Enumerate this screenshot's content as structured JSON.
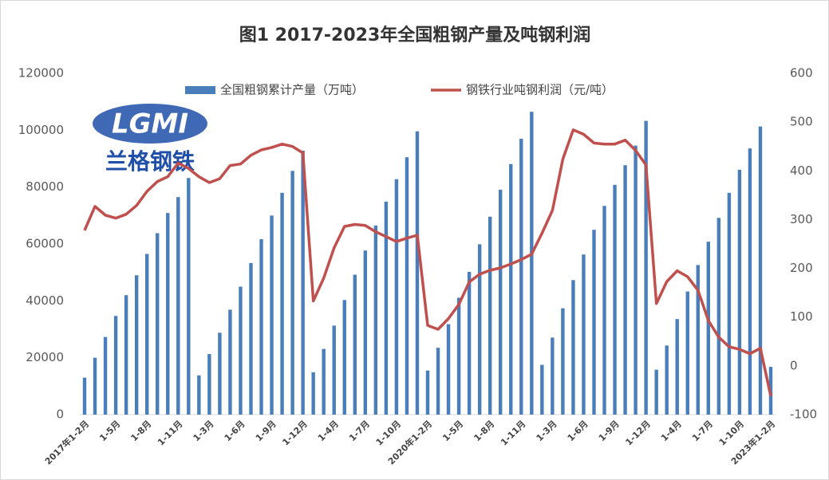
{
  "chart_data": {
    "type": "bar-line",
    "title": "图1 2017-2023年全国粗钢产量及吨钢利润",
    "annotations": [
      "LGMI",
      "兰格钢铁"
    ],
    "categories": [
      "2017年1-2月",
      null,
      null,
      "1-5月",
      null,
      null,
      "1-8月",
      null,
      null,
      "1-11月",
      null,
      null,
      "1-3月",
      null,
      null,
      "1-6月",
      null,
      null,
      "1-9月",
      null,
      null,
      "1-12月",
      null,
      null,
      "1-4月",
      null,
      null,
      "1-7月",
      null,
      null,
      "1-10月",
      null,
      null,
      "2020年1-2月",
      null,
      null,
      "1-5月",
      null,
      null,
      "1-8月",
      null,
      null,
      "1-11月",
      null,
      null,
      "1-3月",
      null,
      null,
      "1-6月",
      null,
      null,
      "1-9月",
      null,
      null,
      "1-12月",
      null,
      null,
      "1-4月",
      null,
      null,
      "1-7月",
      null,
      null,
      "1-10月",
      null,
      null,
      "2023年1-2月"
    ],
    "series": [
      {
        "name": "全国粗钢累计产量（万吨）",
        "color": "#4a7ebb",
        "kind": "bar",
        "axis": "y",
        "values": [
          13000,
          20000,
          27300,
          34700,
          42000,
          49000,
          56500,
          63800,
          70900,
          76500,
          83200,
          13800,
          21300,
          28800,
          36900,
          45000,
          53300,
          61700,
          70000,
          78000,
          85700,
          92800,
          14900,
          23100,
          31300,
          40300,
          49200,
          57700,
          66500,
          74900,
          82800,
          90500,
          99600,
          15500,
          23500,
          31800,
          41100,
          50200,
          59900,
          69600,
          79100,
          88100,
          97000,
          106500,
          17500,
          27100,
          37400,
          47300,
          56300,
          65000,
          73400,
          80800,
          87700,
          94600,
          103300,
          15800,
          24300,
          33600,
          43300,
          52600,
          60800,
          69200,
          78000,
          86100,
          93600,
          101300,
          16800
        ]
      },
      {
        "name": "钢铁行业吨钢利润（元/吨）",
        "color": "#c0504d",
        "kind": "line",
        "axis": "y2",
        "values": [
          278,
          327,
          309,
          303,
          311,
          329,
          358,
          378,
          388,
          416,
          405,
          388,
          376,
          384,
          411,
          414,
          432,
          443,
          448,
          455,
          450,
          437,
          133,
          180,
          242,
          286,
          290,
          288,
          275,
          265,
          255,
          262,
          268,
          83,
          75,
          97,
          126,
          172,
          188,
          196,
          201,
          209,
          218,
          229,
          272,
          319,
          424,
          484,
          475,
          457,
          455,
          455,
          463,
          442,
          412,
          128,
          173,
          195,
          183,
          155,
          93,
          59,
          39,
          34,
          25,
          36,
          -62
        ]
      }
    ],
    "ylim": [
      0,
      120000
    ],
    "yticks": [
      0,
      20000,
      40000,
      60000,
      80000,
      100000,
      120000
    ],
    "y2lim": [
      -100,
      600
    ],
    "y2ticks": [
      -100,
      0,
      100,
      200,
      300,
      400,
      500,
      600
    ]
  }
}
